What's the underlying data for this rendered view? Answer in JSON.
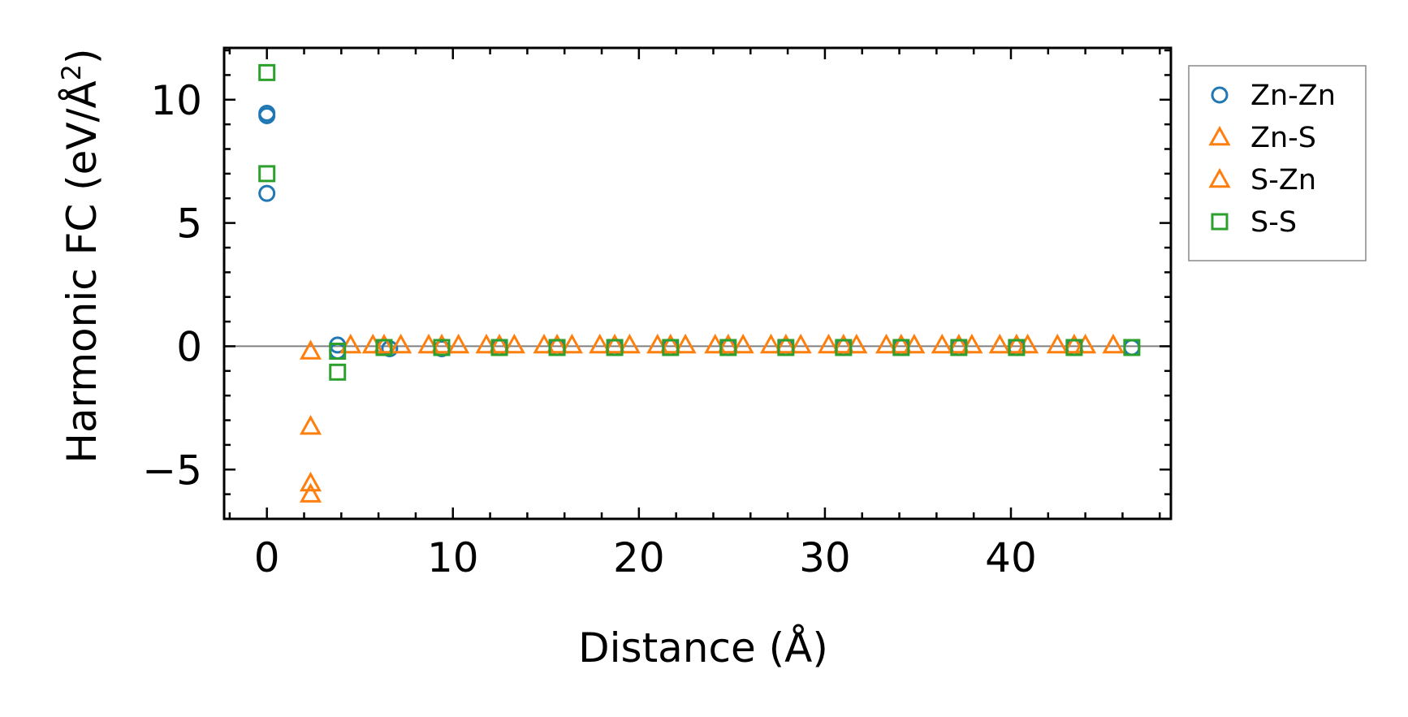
{
  "chart_data": {
    "type": "scatter",
    "xlabel": "Distance (Å)",
    "ylabel": "Harmonic FC (eV/Å",
    "ylabel_sup": "2",
    "ylabel_end": ")",
    "xlim": [
      -2.3,
      48.6
    ],
    "ylim": [
      -7,
      12.1
    ],
    "xticks": [
      0,
      10,
      20,
      30,
      40
    ],
    "xtick_labels": [
      "0",
      "10",
      "20",
      "30",
      "40"
    ],
    "yticks": [
      -5,
      0,
      5,
      10
    ],
    "ytick_labels": [
      "−5",
      "0",
      "5",
      "10"
    ],
    "legend_position": "outside-right",
    "zero_line": true,
    "series": [
      {
        "name": "Zn-Zn",
        "marker": "circle",
        "color": "#1f77b4",
        "points": [
          [
            0,
            9.45
          ],
          [
            0,
            9.35
          ],
          [
            0,
            6.2
          ],
          [
            3.8,
            0.05
          ],
          [
            3.8,
            -0.2
          ],
          [
            6.3,
            -0.05
          ],
          [
            6.6,
            -0.1
          ],
          [
            9.4,
            -0.1
          ],
          [
            12.5,
            -0.05
          ],
          [
            15.6,
            -0.05
          ],
          [
            18.7,
            -0.05
          ],
          [
            21.7,
            -0.05
          ],
          [
            24.8,
            -0.05
          ],
          [
            27.9,
            -0.05
          ],
          [
            31.0,
            -0.05
          ],
          [
            34.1,
            -0.05
          ],
          [
            37.2,
            -0.05
          ],
          [
            40.3,
            -0.05
          ],
          [
            43.4,
            -0.05
          ],
          [
            46.5,
            -0.05
          ]
        ]
      },
      {
        "name": "Zn-S",
        "marker": "triangle",
        "color": "#ff7f0e",
        "points": [
          [
            2.35,
            -0.2
          ],
          [
            2.35,
            -3.25
          ],
          [
            2.35,
            -5.55
          ],
          [
            2.35,
            -6.0
          ],
          [
            4.5,
            0.05
          ],
          [
            5.7,
            0.05
          ],
          [
            7.2,
            0.05
          ],
          [
            8.7,
            0.05
          ],
          [
            10.3,
            0.05
          ],
          [
            11.8,
            0.05
          ],
          [
            13.3,
            0.05
          ],
          [
            14.9,
            0.05
          ],
          [
            16.4,
            0.05
          ],
          [
            17.9,
            0.05
          ],
          [
            19.5,
            0.05
          ],
          [
            21.0,
            0.05
          ],
          [
            22.5,
            0.05
          ],
          [
            24.1,
            0.05
          ],
          [
            25.6,
            0.05
          ],
          [
            27.1,
            0.05
          ],
          [
            28.7,
            0.05
          ],
          [
            30.2,
            0.05
          ],
          [
            31.7,
            0.05
          ],
          [
            33.3,
            0.05
          ],
          [
            34.8,
            0.05
          ],
          [
            36.3,
            0.05
          ],
          [
            37.9,
            0.05
          ],
          [
            39.4,
            0.05
          ],
          [
            40.9,
            0.05
          ],
          [
            42.5,
            0.05
          ],
          [
            44.0,
            0.05
          ],
          [
            45.5,
            0.05
          ]
        ]
      },
      {
        "name": "S-Zn",
        "marker": "triangle",
        "color": "#ff7f0e",
        "points": [
          [
            6.3,
            0.05
          ],
          [
            9.4,
            0.05
          ],
          [
            12.5,
            0.05
          ],
          [
            15.6,
            0.05
          ],
          [
            18.7,
            0.05
          ],
          [
            21.7,
            0.05
          ],
          [
            24.8,
            0.05
          ],
          [
            27.9,
            0.05
          ],
          [
            31.0,
            0.05
          ],
          [
            34.1,
            0.05
          ],
          [
            37.2,
            0.05
          ],
          [
            40.3,
            0.05
          ],
          [
            43.4,
            0.05
          ]
        ]
      },
      {
        "name": "S-S",
        "marker": "square",
        "color": "#2ca02c",
        "points": [
          [
            0,
            11.1
          ],
          [
            0,
            7.0
          ],
          [
            3.8,
            -1.05
          ],
          [
            3.8,
            -0.2
          ],
          [
            6.3,
            -0.05
          ],
          [
            9.4,
            -0.05
          ],
          [
            12.5,
            -0.05
          ],
          [
            15.6,
            -0.05
          ],
          [
            18.7,
            -0.05
          ],
          [
            21.7,
            -0.05
          ],
          [
            24.8,
            -0.05
          ],
          [
            27.9,
            -0.05
          ],
          [
            31.0,
            -0.05
          ],
          [
            34.1,
            -0.05
          ],
          [
            37.2,
            -0.05
          ],
          [
            40.3,
            -0.05
          ],
          [
            43.4,
            -0.05
          ],
          [
            46.5,
            -0.05
          ]
        ]
      }
    ]
  }
}
